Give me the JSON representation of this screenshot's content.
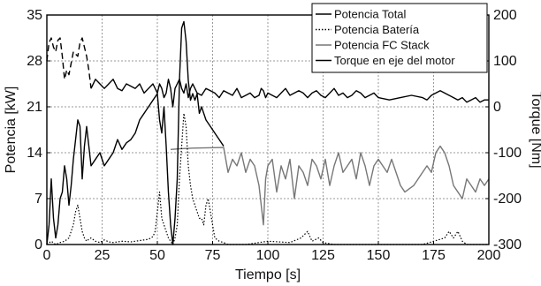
{
  "chart_data": {
    "type": "line",
    "xlabel": "Tiempo [s]",
    "ylabel_left": "Potencia [kW]",
    "ylabel_right": "Torque [Nm]",
    "xlim": [
      0,
      200
    ],
    "ylim_left": [
      0,
      35
    ],
    "ylim_right": [
      -300,
      200
    ],
    "x_ticks": [
      0,
      25,
      50,
      75,
      100,
      125,
      150,
      175,
      200
    ],
    "y_ticks_left": [
      0,
      7,
      14,
      21,
      28,
      35
    ],
    "y_ticks_right": [
      -300,
      -200,
      -100,
      0,
      100,
      200
    ],
    "grid": true,
    "legend_position": "top-right",
    "series": [
      {
        "name": "Potencia Total",
        "axis": "left",
        "color": "#000000",
        "dash": "solid",
        "width": 1.4,
        "x": [
          0,
          1,
          2,
          3,
          4,
          5,
          6,
          7,
          8,
          9,
          10,
          11,
          12,
          13,
          14,
          15,
          16,
          17,
          18,
          19,
          20,
          22,
          24,
          26,
          28,
          30,
          32,
          34,
          35,
          36,
          38,
          40,
          42,
          44,
          46,
          48,
          50,
          51,
          52,
          53,
          54,
          55,
          56,
          57,
          58,
          59,
          60,
          61,
          62,
          63,
          64,
          65,
          66,
          67,
          68,
          69,
          70,
          72,
          74,
          76,
          78,
          80
        ],
        "values": [
          0,
          3,
          10,
          4,
          1,
          3,
          7,
          8,
          12,
          10,
          6,
          9,
          13,
          16,
          19,
          18,
          10,
          15,
          18,
          15,
          12,
          13,
          14,
          12,
          13,
          14,
          16,
          14.5,
          15,
          15.5,
          16,
          17,
          19,
          20,
          21,
          22,
          23,
          19,
          17,
          21,
          15,
          8,
          3,
          0,
          4,
          10,
          25,
          33,
          34,
          31,
          25,
          22,
          23,
          22,
          23,
          20,
          21,
          19,
          18,
          17,
          16,
          15
        ]
      },
      {
        "name": "Potencia Batería",
        "axis": "left",
        "color": "#000000",
        "dash": "dotted",
        "width": 1.2,
        "x": [
          0,
          2,
          4,
          6,
          8,
          10,
          12,
          13,
          14,
          15,
          16,
          17,
          18,
          19,
          20,
          22,
          24,
          26,
          28,
          30,
          34,
          38,
          42,
          46,
          48,
          49,
          50,
          51,
          52,
          53,
          54,
          55,
          56,
          57,
          58,
          59,
          60,
          61,
          62,
          63,
          64,
          65,
          66,
          67,
          68,
          69,
          70,
          71,
          72,
          73,
          74,
          75,
          76,
          78,
          80,
          82,
          90,
          100,
          110,
          115,
          118,
          120,
          123,
          125,
          130,
          140,
          150,
          160,
          170,
          180,
          182,
          184,
          186,
          188,
          190,
          195,
          200
        ],
        "values": [
          0,
          0.5,
          0,
          0.3,
          0.5,
          1,
          3,
          5,
          6,
          4,
          2,
          1,
          0.5,
          0.8,
          1,
          0.5,
          0.3,
          0.7,
          0.4,
          0.3,
          0.5,
          0.4,
          0.6,
          0.8,
          1.2,
          2,
          5,
          8,
          4,
          3,
          2,
          1,
          0.5,
          0,
          1,
          3,
          10,
          15,
          20,
          18,
          12,
          9,
          7,
          6,
          5,
          4,
          4,
          3,
          6,
          7,
          5,
          3,
          1,
          0.5,
          0.3,
          0,
          0,
          0.5,
          0.3,
          1,
          2,
          0.5,
          1,
          0.3,
          0,
          0,
          0,
          0,
          0,
          1,
          2,
          1,
          2,
          0.5,
          0,
          0,
          0
        ]
      },
      {
        "name": "Potencia FC Stack",
        "axis": "left",
        "color": "#777777",
        "dash": "solid",
        "width": 1.4,
        "x": [
          56,
          60,
          66,
          80,
          82,
          84,
          86,
          88,
          90,
          92,
          94,
          96,
          97,
          98,
          99,
          100,
          102,
          104,
          106,
          108,
          110,
          112,
          114,
          116,
          118,
          120,
          122,
          124,
          126,
          128,
          130,
          132,
          134,
          136,
          138,
          140,
          142,
          144,
          146,
          148,
          150,
          152,
          154,
          156,
          158,
          160,
          162,
          164,
          166,
          168,
          170,
          172,
          174,
          176,
          178,
          180,
          182,
          184,
          186,
          188,
          190,
          192,
          194,
          196,
          198,
          200
        ],
        "values": [
          14.5,
          14.6,
          14.7,
          14.8,
          11,
          13,
          12,
          14,
          11,
          13,
          12,
          9,
          6,
          3,
          10,
          12,
          13,
          8,
          12,
          10,
          13,
          7,
          12,
          11,
          9,
          13,
          12,
          10,
          13,
          9,
          12,
          14,
          11,
          12,
          13,
          10,
          14,
          12,
          9,
          12,
          13,
          12,
          11,
          13,
          11,
          9,
          8,
          8.5,
          9,
          10,
          11,
          12,
          11,
          14,
          15,
          14,
          12,
          9,
          8,
          7,
          10,
          9,
          8,
          10,
          9,
          10
        ]
      },
      {
        "name": "Torque en eje del motor",
        "axis": "right",
        "color": "#000000",
        "dash": "dashed-solid",
        "width": 1.4,
        "x": [
          0,
          1,
          2,
          3,
          4,
          5,
          6,
          7,
          8,
          9,
          10,
          12,
          14,
          15,
          16,
          17,
          18,
          19,
          20,
          22,
          24,
          26,
          28,
          30,
          32,
          34,
          36,
          38,
          40,
          42,
          44,
          46,
          48,
          50,
          51,
          52,
          53,
          54,
          55,
          56,
          57,
          58,
          59,
          60,
          61,
          62,
          63,
          64,
          65,
          66,
          67,
          68,
          70,
          72,
          74,
          76,
          78,
          80,
          82,
          84,
          86,
          88,
          90,
          92,
          94,
          96,
          97,
          98,
          99,
          100,
          102,
          104,
          106,
          108,
          110,
          112,
          114,
          116,
          118,
          120,
          122,
          124,
          126,
          128,
          130,
          132,
          134,
          136,
          138,
          140,
          142,
          144,
          146,
          148,
          150,
          155,
          160,
          165,
          170,
          172,
          174,
          176,
          178,
          180,
          182,
          184,
          186,
          188,
          190,
          192,
          194,
          196,
          198,
          200
        ],
        "values": [
          100,
          140,
          150,
          130,
          120,
          145,
          150,
          110,
          60,
          80,
          70,
          120,
          110,
          140,
          150,
          130,
          110,
          80,
          40,
          60,
          50,
          40,
          50,
          60,
          40,
          35,
          50,
          45,
          40,
          50,
          30,
          40,
          50,
          30,
          50,
          40,
          20,
          30,
          60,
          40,
          0,
          40,
          50,
          60,
          40,
          30,
          50,
          20,
          40,
          50,
          40,
          30,
          25,
          40,
          35,
          30,
          20,
          35,
          30,
          25,
          40,
          20,
          25,
          30,
          20,
          25,
          40,
          35,
          20,
          30,
          25,
          20,
          30,
          40,
          25,
          30,
          35,
          30,
          20,
          30,
          35,
          25,
          20,
          30,
          40,
          25,
          30,
          20,
          25,
          35,
          30,
          20,
          25,
          30,
          20,
          15,
          20,
          25,
          20,
          15,
          25,
          30,
          35,
          30,
          25,
          20,
          15,
          20,
          10,
          15,
          20,
          10,
          15,
          15
        ]
      }
    ]
  }
}
